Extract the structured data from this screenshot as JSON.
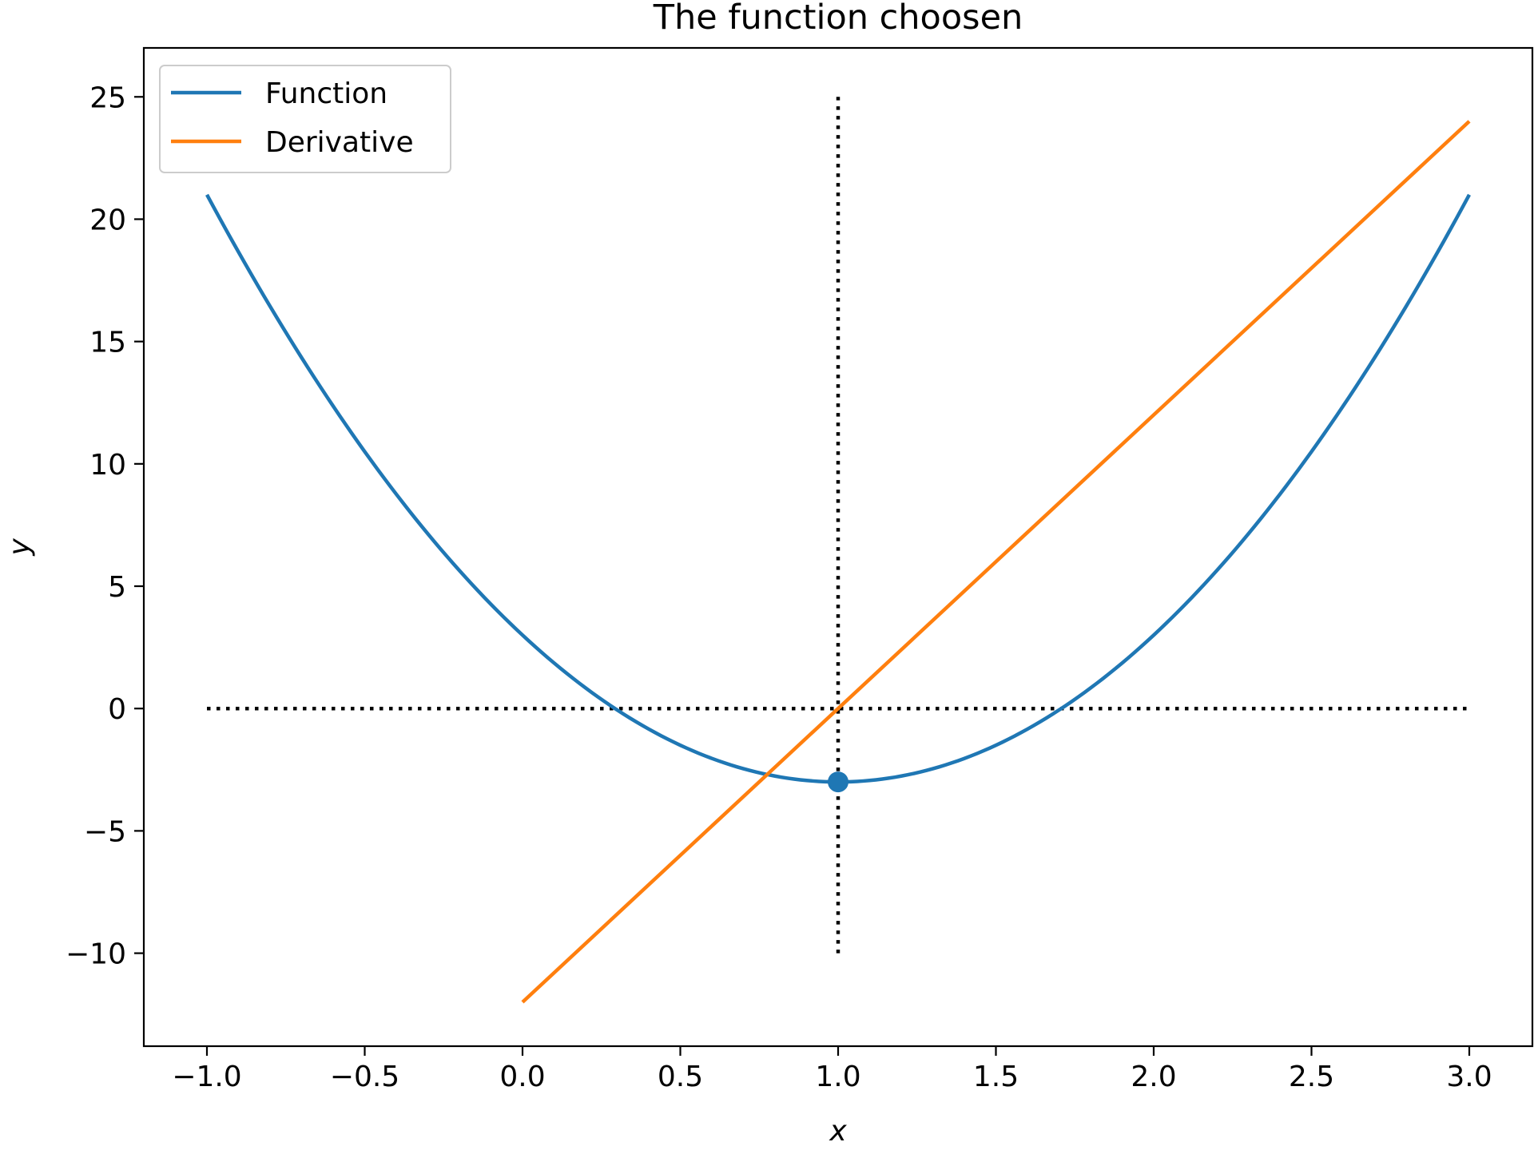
{
  "chart_data": {
    "type": "line",
    "title": "The function choosen",
    "xlabel": "x",
    "ylabel": "y",
    "xlim": [
      -1.2,
      3.2
    ],
    "ylim": [
      -13.8,
      27
    ],
    "xticks": [
      -1.0,
      -0.5,
      0.0,
      0.5,
      1.0,
      1.5,
      2.0,
      2.5,
      3.0
    ],
    "xtick_labels": [
      "−1.0",
      "−0.5",
      "0.0",
      "0.5",
      "1.0",
      "1.5",
      "2.0",
      "2.5",
      "3.0"
    ],
    "yticks": [
      -10,
      -5,
      0,
      5,
      10,
      15,
      20,
      25
    ],
    "ytick_labels": [
      "−10",
      "−5",
      "0",
      "5",
      "10",
      "15",
      "20",
      "25"
    ],
    "grid": false,
    "legend_position": "top-left",
    "series": [
      {
        "name": "Function",
        "color": "#1f77b4",
        "x": [
          -1.0,
          -0.75,
          -0.5,
          -0.25,
          0.0,
          0.25,
          0.5,
          0.75,
          1.0,
          1.25,
          1.5,
          1.75,
          2.0,
          2.25,
          2.5,
          2.75,
          3.0
        ],
        "y": [
          21,
          15.375,
          10.5,
          6.375,
          3,
          0.375,
          -1.5,
          -2.625,
          -3,
          -2.625,
          -1.5,
          0.375,
          3,
          6.375,
          10.5,
          15.375,
          21
        ]
      },
      {
        "name": "Derivative",
        "color": "#ff7f0e",
        "x": [
          0.0,
          3.0
        ],
        "y": [
          -12,
          24
        ]
      }
    ],
    "reference_lines": [
      {
        "kind": "horizontal",
        "y": 0,
        "x": [
          -1.0,
          3.0
        ],
        "style": "dotted",
        "color": "#000000"
      },
      {
        "kind": "vertical",
        "x": 1.0,
        "y": [
          -10,
          25
        ],
        "style": "dotted",
        "color": "#000000"
      }
    ],
    "marker": {
      "x": 1.0,
      "y": -3,
      "color": "#1f77b4"
    }
  }
}
